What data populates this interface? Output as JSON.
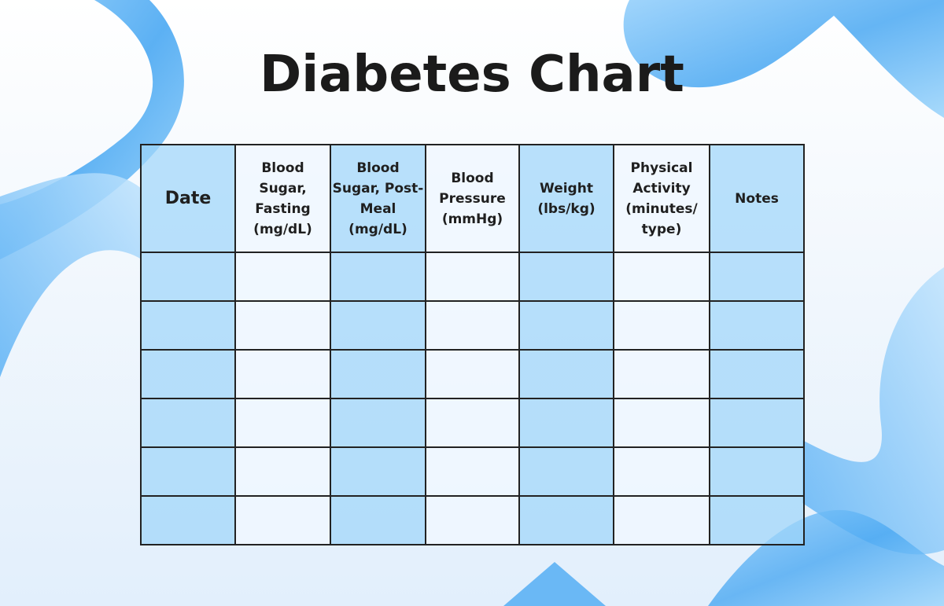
{
  "title": "Diabetes Chart",
  "colors": {
    "accent_blue": "#bbe1fb",
    "light_cell": "#eef7fe",
    "border": "#222222",
    "ribbon": "#5fb3f5"
  },
  "table": {
    "columns": [
      {
        "label": "Date",
        "shade": "blue"
      },
      {
        "label": "Blood Sugar, Fasting (mg/dL)",
        "shade": "light"
      },
      {
        "label": "Blood Sugar, Post-Meal (mg/dL)",
        "shade": "blue"
      },
      {
        "label": "Blood Pressure (mmHg)",
        "shade": "light"
      },
      {
        "label": "Weight (lbs/kg)",
        "shade": "blue"
      },
      {
        "label": "Physical Activity (minutes/ type)",
        "shade": "light"
      },
      {
        "label": "Notes",
        "shade": "blue"
      }
    ],
    "rows": [
      [
        "",
        "",
        "",
        "",
        "",
        "",
        ""
      ],
      [
        "",
        "",
        "",
        "",
        "",
        "",
        ""
      ],
      [
        "",
        "",
        "",
        "",
        "",
        "",
        ""
      ],
      [
        "",
        "",
        "",
        "",
        "",
        "",
        ""
      ],
      [
        "",
        "",
        "",
        "",
        "",
        "",
        ""
      ],
      [
        "",
        "",
        "",
        "",
        "",
        "",
        ""
      ]
    ]
  }
}
